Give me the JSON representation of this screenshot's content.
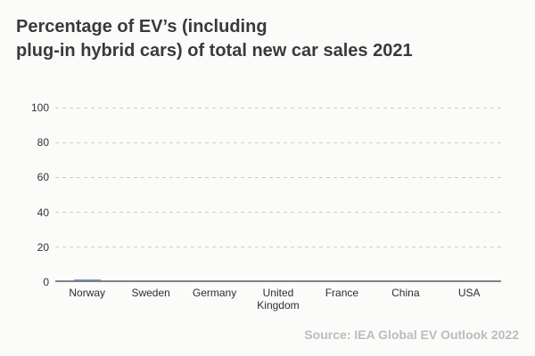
{
  "title": {
    "line1": "Percentage of EV’s (including",
    "line2": "plug-in hybrid cars) of total new car sales 2021"
  },
  "source": "Source: IEA Global EV Outlook 2022",
  "colors": {
    "background": "#fbfbfa",
    "title_text": "#3a3a3a",
    "axis_line": "#828282",
    "gridline": "#cdcdcd",
    "tick_text": "#333333",
    "bar_fill": "#5b9bd5",
    "source_text": "#bcbcbc"
  },
  "chart_data": {
    "type": "bar",
    "title": "Percentage of EV’s (including plug-in hybrid cars) of total new car sales 2021",
    "categories": [
      "Norway",
      "Sweden",
      "Germany",
      "United Kingdom",
      "France",
      "China",
      "USA"
    ],
    "values": [
      0.5,
      0,
      0,
      0,
      0,
      0,
      0
    ],
    "xlabel": "",
    "ylabel": "",
    "ylim": [
      0,
      100
    ],
    "yticks": [
      0,
      20,
      40,
      60,
      80,
      100
    ],
    "grid": "horizontal-dashed",
    "legend": "none",
    "bar_color": "#5b9bd5",
    "annotation": "Source: IEA Global EV Outlook 2022"
  }
}
